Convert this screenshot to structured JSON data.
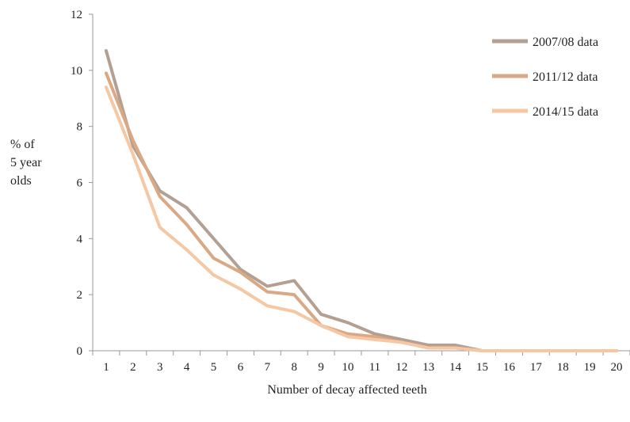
{
  "chart_data": {
    "type": "line",
    "title": "",
    "xlabel": "Number of decay affected teeth",
    "ylabel_lines": [
      "% of",
      "5 year",
      "olds"
    ],
    "x": [
      1,
      2,
      3,
      4,
      5,
      6,
      7,
      8,
      9,
      10,
      11,
      12,
      13,
      14,
      15,
      16,
      17,
      18,
      19,
      20
    ],
    "ylim": [
      0,
      12
    ],
    "yticks": [
      0,
      2,
      4,
      6,
      8,
      10,
      12
    ],
    "grid": false,
    "legend_position": "top-right",
    "series": [
      {
        "name": "2007/08 data",
        "color": "#b4a093",
        "values": [
          10.7,
          7.3,
          5.7,
          5.1,
          4.0,
          2.9,
          2.3,
          2.5,
          1.3,
          1.0,
          0.6,
          0.4,
          0.2,
          0.2,
          0.0,
          0.0,
          0.0,
          0.0,
          0.0,
          0.0
        ]
      },
      {
        "name": "2011/12 data",
        "color": "#d9a884",
        "values": [
          9.9,
          7.5,
          5.5,
          4.5,
          3.3,
          2.8,
          2.1,
          2.0,
          0.9,
          0.6,
          0.5,
          0.3,
          0.1,
          0.1,
          0.0,
          0.0,
          0.0,
          0.0,
          0.0,
          0.0
        ]
      },
      {
        "name": "2014/15 data",
        "color": "#f6c7a3",
        "values": [
          9.4,
          7.0,
          4.4,
          3.6,
          2.7,
          2.2,
          1.6,
          1.4,
          0.9,
          0.5,
          0.4,
          0.3,
          0.1,
          0.1,
          0.0,
          0.0,
          0.0,
          0.0,
          0.0,
          0.0
        ]
      }
    ]
  }
}
